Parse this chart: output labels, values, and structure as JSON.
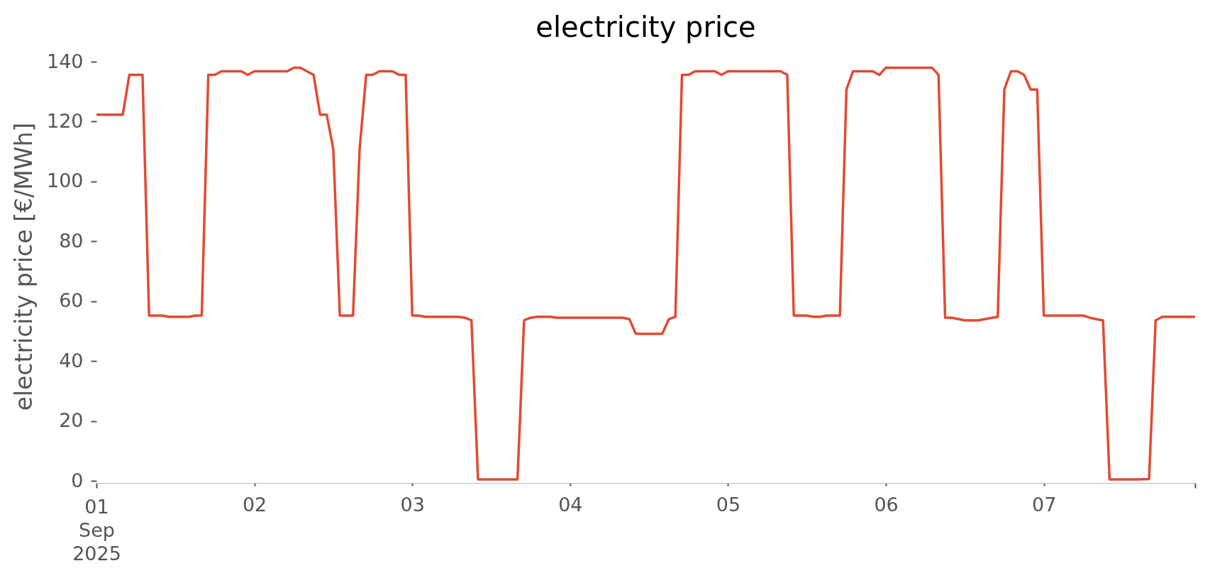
{
  "chart_data": {
    "type": "line",
    "title": "electricity price",
    "ylabel": "electricity price [€/MWh]",
    "x": [
      "2025-09-01T00:00",
      "2025-09-01T04:00",
      "2025-09-01T05:00",
      "2025-09-01T07:00",
      "2025-09-01T08:00",
      "2025-09-01T10:00",
      "2025-09-01T11:00",
      "2025-09-01T14:00",
      "2025-09-01T15:00",
      "2025-09-01T16:00",
      "2025-09-01T17:00",
      "2025-09-01T18:00",
      "2025-09-01T19:00",
      "2025-09-01T22:00",
      "2025-09-01T23:00",
      "2025-09-02T00:00",
      "2025-09-02T05:00",
      "2025-09-02T06:00",
      "2025-09-02T07:00",
      "2025-09-02T09:00",
      "2025-09-02T10:00",
      "2025-09-02T11:00",
      "2025-09-02T12:00",
      "2025-09-02T13:00",
      "2025-09-02T15:00",
      "2025-09-02T16:00",
      "2025-09-02T17:00",
      "2025-09-02T18:00",
      "2025-09-02T19:00",
      "2025-09-02T21:00",
      "2025-09-02T22:00",
      "2025-09-02T23:00",
      "2025-09-03T00:00",
      "2025-09-03T01:00",
      "2025-09-03T02:00",
      "2025-09-03T07:00",
      "2025-09-03T08:00",
      "2025-09-03T09:00",
      "2025-09-03T10:00",
      "2025-09-03T16:00",
      "2025-09-03T17:00",
      "2025-09-03T18:00",
      "2025-09-03T19:00",
      "2025-09-03T21:00",
      "2025-09-03T22:00",
      "2025-09-04T08:00",
      "2025-09-04T09:00",
      "2025-09-04T10:00",
      "2025-09-04T14:00",
      "2025-09-04T15:00",
      "2025-09-04T16:00",
      "2025-09-04T17:00",
      "2025-09-04T18:00",
      "2025-09-04T19:00",
      "2025-09-04T22:00",
      "2025-09-04T23:00",
      "2025-09-05T00:00",
      "2025-09-05T08:00",
      "2025-09-05T09:00",
      "2025-09-05T10:00",
      "2025-09-05T12:00",
      "2025-09-05T13:00",
      "2025-09-05T14:00",
      "2025-09-05T15:00",
      "2025-09-05T17:00",
      "2025-09-05T18:00",
      "2025-09-05T19:00",
      "2025-09-05T22:00",
      "2025-09-05T23:00",
      "2025-09-06T00:00",
      "2025-09-06T07:00",
      "2025-09-06T08:00",
      "2025-09-06T09:00",
      "2025-09-06T10:00",
      "2025-09-06T12:00",
      "2025-09-06T14:00",
      "2025-09-06T15:00",
      "2025-09-06T17:00",
      "2025-09-06T18:00",
      "2025-09-06T19:00",
      "2025-09-06T20:00",
      "2025-09-06T21:00",
      "2025-09-06T22:00",
      "2025-09-06T23:00",
      "2025-09-07T00:00",
      "2025-09-07T06:00",
      "2025-09-07T07:00",
      "2025-09-07T08:00",
      "2025-09-07T09:00",
      "2025-09-07T10:00",
      "2025-09-07T14:00",
      "2025-09-07T16:00",
      "2025-09-07T17:00",
      "2025-09-07T18:00",
      "2025-09-07T23:00"
    ],
    "series": [
      {
        "color": "#e24a33",
        "values": [
          122.3,
          122.3,
          135.6,
          135.6,
          55.2,
          55.2,
          54.8,
          54.8,
          55.2,
          55.2,
          135.6,
          135.6,
          136.8,
          136.8,
          135.6,
          136.8,
          136.8,
          138.0,
          138.0,
          135.6,
          122.3,
          122.3,
          110.8,
          55.2,
          55.2,
          110.8,
          135.6,
          135.6,
          136.8,
          136.8,
          135.6,
          135.6,
          55.2,
          55.2,
          54.8,
          54.8,
          54.5,
          53.6,
          0.5,
          0.5,
          53.6,
          54.5,
          54.8,
          54.8,
          54.5,
          54.5,
          54.0,
          49.1,
          49.1,
          54.0,
          54.8,
          135.6,
          135.6,
          136.8,
          136.8,
          135.6,
          136.8,
          136.8,
          135.6,
          55.2,
          55.2,
          54.8,
          54.8,
          55.2,
          55.2,
          130.7,
          136.8,
          136.8,
          135.6,
          138.0,
          138.0,
          135.6,
          54.5,
          54.5,
          53.6,
          53.6,
          54.0,
          54.8,
          130.7,
          136.8,
          136.8,
          135.6,
          130.7,
          130.7,
          55.2,
          55.2,
          54.5,
          54.0,
          53.6,
          0.5,
          0.5,
          0.6,
          53.6,
          54.8,
          54.8
        ]
      }
    ],
    "xlim": [
      "2025-09-01T00:00",
      "2025-09-07T23:00"
    ],
    "xticks": [
      {
        "value": "2025-09-01",
        "label": "01\nSep\n2025"
      },
      {
        "value": "2025-09-02",
        "label": "02"
      },
      {
        "value": "2025-09-03",
        "label": "03"
      },
      {
        "value": "2025-09-04",
        "label": "04"
      },
      {
        "value": "2025-09-05",
        "label": "05"
      },
      {
        "value": "2025-09-06",
        "label": "06"
      },
      {
        "value": "2025-09-07",
        "label": "07"
      },
      {
        "value": "2025-09-07T23:00",
        "label": null
      }
    ],
    "ylim": [
      0,
      140
    ],
    "yticks": [
      0,
      20,
      40,
      60,
      80,
      100,
      120,
      140
    ],
    "grid": false
  }
}
